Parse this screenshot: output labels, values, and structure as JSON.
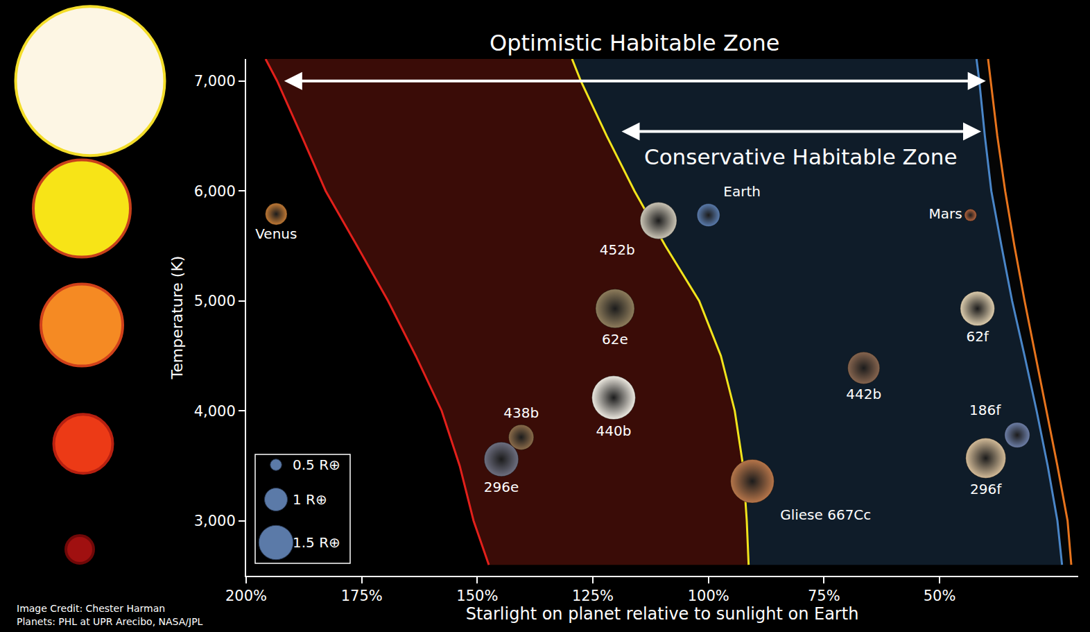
{
  "chart_data": {
    "type": "scatter",
    "x_label": "Starlight on planet relative to sunlight on Earth",
    "y_label": "Temperature (K)",
    "xlim": [
      200,
      20
    ],
    "ylim": [
      2500,
      7200
    ],
    "xticks": [
      {
        "value": 200,
        "label": "200%"
      },
      {
        "value": 175,
        "label": "175%"
      },
      {
        "value": 150,
        "label": "150%"
      },
      {
        "value": 125,
        "label": "125%"
      },
      {
        "value": 100,
        "label": "100%"
      },
      {
        "value": 75,
        "label": "75%"
      },
      {
        "value": 50,
        "label": "50%"
      }
    ],
    "yticks": [
      {
        "value": 3000,
        "label": "3,000"
      },
      {
        "value": 4000,
        "label": "4,000"
      },
      {
        "value": 5000,
        "label": "5,000"
      },
      {
        "value": 6000,
        "label": "6,000"
      },
      {
        "value": 7000,
        "label": "7,000"
      }
    ],
    "grid": false,
    "zones": [
      {
        "label": "Optimistic Habitable Zone",
        "from": 192,
        "to": 40,
        "y": 7000
      },
      {
        "label": "Conservative Habitable Zone",
        "from": 119,
        "to": 41,
        "y": 6540
      }
    ],
    "series": [
      {
        "type": "line",
        "color": "#e3201b",
        "x": [
          195.8,
          193.3,
          188,
          182.8,
          176,
          169.3,
          163.3,
          157.7,
          153.8,
          150.8,
          147.5
        ],
        "y": [
          7200,
          7000,
          6500,
          6000,
          5500,
          5000,
          4500,
          4000,
          3500,
          3000,
          2600
        ]
      },
      {
        "type": "line",
        "color": "#f2e41c",
        "x": [
          129.5,
          127.6,
          122,
          116,
          109.3,
          102,
          97.3,
          94.3,
          92.5,
          91.7,
          91.3
        ],
        "y": [
          7200,
          7000,
          6500,
          6000,
          5500,
          5000,
          4500,
          4000,
          3500,
          3000,
          2600
        ]
      },
      {
        "type": "line",
        "color": "#4a86c8",
        "x": [
          42,
          41.4,
          40.2,
          38.8,
          36.6,
          34.3,
          31.6,
          29,
          26.6,
          24.5,
          23.5
        ],
        "y": [
          7200,
          7000,
          6500,
          6000,
          5500,
          5000,
          4500,
          4000,
          3500,
          3000,
          2600
        ]
      },
      {
        "type": "line",
        "color": "#e8741c",
        "x": [
          39.5,
          38.9,
          37.5,
          35.8,
          33.8,
          31.6,
          29.2,
          26.8,
          24.5,
          22.3,
          21.5
        ],
        "y": [
          7200,
          7000,
          6500,
          6000,
          5500,
          5000,
          4500,
          4000,
          3500,
          3000,
          2600
        ]
      },
      {
        "type": "scatter",
        "labels": [
          "Venus",
          "Earth",
          "Mars",
          "452b",
          "62e",
          "62f",
          "440b",
          "438b",
          "296e",
          "Gliese 667Cc",
          "442b",
          "186f",
          "296f"
        ],
        "x": [
          193.5,
          100,
          43.3,
          110.8,
          120.2,
          41.8,
          120.5,
          140.5,
          144.8,
          90.5,
          66.4,
          33.2,
          40
        ],
        "y": [
          5790,
          5780,
          5780,
          5730,
          4930,
          4930,
          4120,
          3760,
          3560,
          3360,
          4390,
          3780,
          3570
        ],
        "radius": [
          0.95,
          1,
          0.53,
          1.6,
          1.7,
          1.5,
          1.9,
          1.1,
          1.5,
          1.9,
          1.4,
          1.1,
          1.75
        ],
        "colors": [
          "#c27a35",
          "#5a7cae",
          "#b5643e",
          "#cbc5b6",
          "#8f7d5c",
          "#ddcdae",
          "#ede9e0",
          "#8c6c4a",
          "#6e6f80",
          "#b7764a",
          "#86654f",
          "#6d7fa8",
          "#d3bb98"
        ]
      }
    ],
    "size_legend": [
      {
        "radius": 0.5,
        "label": "0.5 R⊕"
      },
      {
        "radius": 1,
        "label": "1 R⊕"
      },
      {
        "radius": 1.5,
        "label": "1.5 R⊕"
      }
    ],
    "stars": {
      "temperatures": [
        7000,
        5840,
        4780,
        3700,
        2740
      ],
      "colors": [
        "#fdf6e4",
        "#f7e417",
        "#f58a23",
        "#ec3a16",
        "#a01010"
      ]
    },
    "credits": [
      "Image Credit: Chester Harman",
      "Planets: PHL at UPR Arecibo, NASA/JPL"
    ]
  }
}
